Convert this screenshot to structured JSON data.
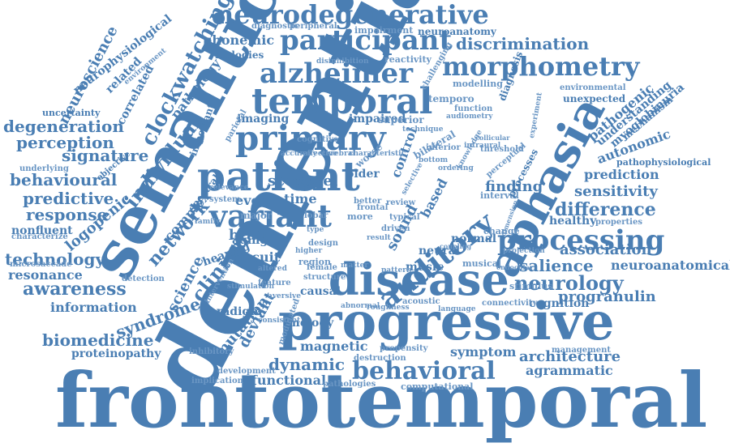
{
  "color": "#4a7eb3",
  "words": [
    {
      "text": "frontotemporal"
    },
    {
      "text": "dementia"
    },
    {
      "text": "progressive"
    },
    {
      "text": "semantic"
    },
    {
      "text": "patient"
    },
    {
      "text": "disease"
    },
    {
      "text": "aphasia"
    },
    {
      "text": "temporal"
    },
    {
      "text": "neurodegenerative"
    },
    {
      "text": "participant"
    },
    {
      "text": "alzheimer"
    },
    {
      "text": "primary"
    },
    {
      "text": "morphometry"
    },
    {
      "text": "variant"
    },
    {
      "text": "processing"
    },
    {
      "text": "behavioral"
    },
    {
      "text": "auditory"
    },
    {
      "text": "neurology"
    },
    {
      "text": "clockwatching"
    },
    {
      "text": "individual"
    },
    {
      "text": "network"
    },
    {
      "text": "clinical"
    },
    {
      "text": "degeneration"
    },
    {
      "text": "neuroscience"
    },
    {
      "text": "discrimination"
    },
    {
      "text": "perception"
    },
    {
      "text": "signature"
    },
    {
      "text": "behavioural"
    },
    {
      "text": "predictive"
    },
    {
      "text": "response"
    },
    {
      "text": "nonfluent"
    },
    {
      "text": "logopenic"
    },
    {
      "text": "technology"
    },
    {
      "text": "resonance"
    },
    {
      "text": "awareness"
    },
    {
      "text": "information"
    },
    {
      "text": "syndrome"
    },
    {
      "text": "biomedicine"
    },
    {
      "text": "proteinopathy"
    },
    {
      "text": "neurophysiological"
    },
    {
      "text": "related"
    },
    {
      "text": "correlated"
    },
    {
      "text": "uncertainty"
    },
    {
      "text": "phonemic"
    },
    {
      "text": "melodies"
    },
    {
      "text": "pathology"
    },
    {
      "text": "diagnostic"
    },
    {
      "text": "peripheral"
    },
    {
      "text": "impairment"
    },
    {
      "text": "neuroanatomy"
    },
    {
      "text": "reactivity"
    },
    {
      "text": "modelling"
    },
    {
      "text": "function"
    },
    {
      "text": "diagnosis"
    },
    {
      "text": "environmental"
    },
    {
      "text": "unexpected"
    },
    {
      "text": "pathogenic"
    },
    {
      "text": "understanding"
    },
    {
      "text": "myoglobinuria"
    },
    {
      "text": "mechanism"
    },
    {
      "text": "autonomic"
    },
    {
      "text": "pathophysiological"
    },
    {
      "text": "prediction"
    },
    {
      "text": "sensitivity"
    },
    {
      "text": "difference"
    },
    {
      "text": "healthy"
    },
    {
      "text": "association"
    },
    {
      "text": "salience"
    },
    {
      "text": "neuroanatomical"
    },
    {
      "text": "progranulin"
    },
    {
      "text": "architecture"
    },
    {
      "text": "agrammatic"
    },
    {
      "text": "symptom"
    },
    {
      "text": "dynamic"
    },
    {
      "text": "deviant"
    },
    {
      "text": "mutation"
    },
    {
      "text": "magnetic"
    },
    {
      "text": "functional"
    },
    {
      "text": "computational"
    },
    {
      "text": "science"
    },
    {
      "text": "brain"
    },
    {
      "text": "complex"
    },
    {
      "text": "imaging"
    },
    {
      "text": "impaired"
    },
    {
      "text": "superior"
    },
    {
      "text": "score"
    },
    {
      "text": "voxel"
    },
    {
      "text": "event"
    },
    {
      "text": "time"
    },
    {
      "text": "sound"
    },
    {
      "text": "finding"
    },
    {
      "text": "control"
    },
    {
      "text": "older"
    },
    {
      "text": "music"
    },
    {
      "text": "melody"
    },
    {
      "text": "neural"
    },
    {
      "text": "normal"
    },
    {
      "text": "cognition"
    },
    {
      "text": "circuit"
    },
    {
      "text": "aging"
    },
    {
      "text": "hearing"
    },
    {
      "text": "paradigm"
    },
    {
      "text": "inhibitory"
    },
    {
      "text": "detection"
    },
    {
      "text": "microsaccade"
    },
    {
      "text": "characterize"
    },
    {
      "text": "important"
    },
    {
      "text": "causal"
    },
    {
      "text": "major"
    },
    {
      "text": "spectral"
    },
    {
      "text": "system"
    },
    {
      "text": "underlying"
    },
    {
      "text": "objective"
    },
    {
      "text": "environment"
    },
    {
      "text": "musical"
    },
    {
      "text": "region"
    },
    {
      "text": "stimulus"
    },
    {
      "text": "interval"
    },
    {
      "text": "based"
    },
    {
      "text": "change"
    },
    {
      "text": "worse"
    },
    {
      "text": "bilateral"
    },
    {
      "text": "processes"
    },
    {
      "text": "perceptual"
    },
    {
      "text": "experiment"
    },
    {
      "text": "management"
    },
    {
      "text": "modulated"
    },
    {
      "text": "development"
    },
    {
      "text": "implication"
    },
    {
      "text": "pathologies"
    },
    {
      "text": "destruction"
    },
    {
      "text": "propensity"
    },
    {
      "text": "acoustic"
    },
    {
      "text": "roughness"
    },
    {
      "text": "connectivity"
    },
    {
      "text": "properties"
    },
    {
      "text": "projection"
    },
    {
      "text": "temporo"
    },
    {
      "text": "challenging"
    },
    {
      "text": "audiometry"
    },
    {
      "text": "disinhibition"
    },
    {
      "text": "cognitive"
    },
    {
      "text": "parietal"
    },
    {
      "text": "lobar"
    },
    {
      "text": "stimulation"
    },
    {
      "text": "intervention"
    },
    {
      "text": "relevance"
    },
    {
      "text": "structure"
    },
    {
      "text": "female"
    },
    {
      "text": "better"
    },
    {
      "text": "frontal"
    },
    {
      "text": "typical"
    },
    {
      "text": "driven"
    },
    {
      "text": "review"
    },
    {
      "text": "threshold"
    },
    {
      "text": "intraural"
    },
    {
      "text": "inferior"
    },
    {
      "text": "bottom"
    },
    {
      "text": "ordering"
    },
    {
      "text": "technique"
    },
    {
      "text": "characteristic"
    },
    {
      "text": "accuracy"
    },
    {
      "text": "effective"
    },
    {
      "text": "cerebral"
    },
    {
      "text": "knowledge"
    },
    {
      "text": "altered"
    },
    {
      "text": "feature"
    },
    {
      "text": "higher"
    },
    {
      "text": "design"
    },
    {
      "text": "matter"
    },
    {
      "text": "pattern"
    },
    {
      "text": "result"
    },
    {
      "text": "language"
    },
    {
      "text": "endocular"
    },
    {
      "text": "coupling"
    },
    {
      "text": "dimension"
    },
    {
      "text": "selective"
    },
    {
      "text": "more"
    },
    {
      "text": "type"
    },
    {
      "text": "family"
    },
    {
      "text": "collicular"
    },
    {
      "text": "aversive"
    },
    {
      "text": "consistent"
    },
    {
      "text": "abnormal"
    }
  ]
}
